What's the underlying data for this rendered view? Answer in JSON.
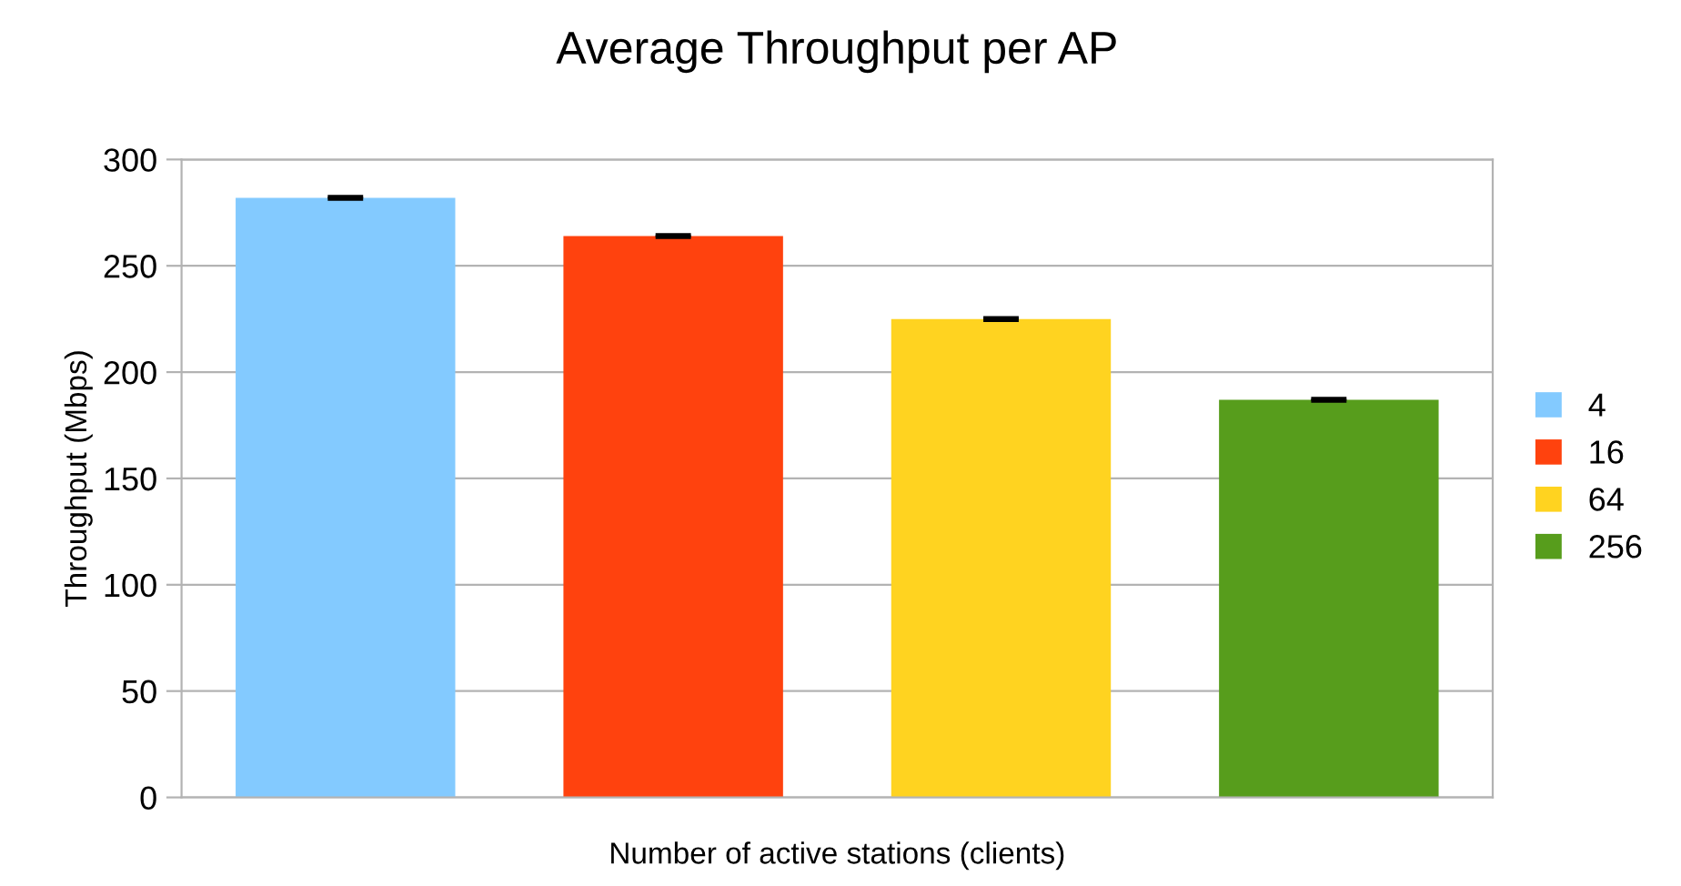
{
  "chart_data": {
    "type": "bar",
    "title": "Average Throughput per AP",
    "xlabel": "Number of active stations (clients)",
    "ylabel": "Throughput (Mbps)",
    "categories": [
      null,
      null,
      null,
      null
    ],
    "stacked": true,
    "series": [
      {
        "name": "4",
        "color": "#83caff",
        "values": [
          282,
          null,
          null,
          null
        ],
        "errors": [
          0.5,
          null,
          null,
          null
        ]
      },
      {
        "name": "16",
        "color": "#ff420e",
        "values": [
          null,
          264,
          null,
          null
        ],
        "errors": [
          null,
          0.5,
          null,
          null
        ]
      },
      {
        "name": "64",
        "color": "#ffd320",
        "values": [
          null,
          null,
          225,
          null
        ],
        "errors": [
          null,
          null,
          0.5,
          null
        ]
      },
      {
        "name": "256",
        "color": "#579d1c",
        "values": [
          null,
          null,
          null,
          187
        ],
        "errors": [
          null,
          null,
          null,
          0.5
        ]
      }
    ],
    "ylim": [
      0,
      300
    ],
    "yticks": [
      0,
      50,
      100,
      150,
      200,
      250,
      300
    ],
    "grid": "y",
    "legend": "right"
  }
}
